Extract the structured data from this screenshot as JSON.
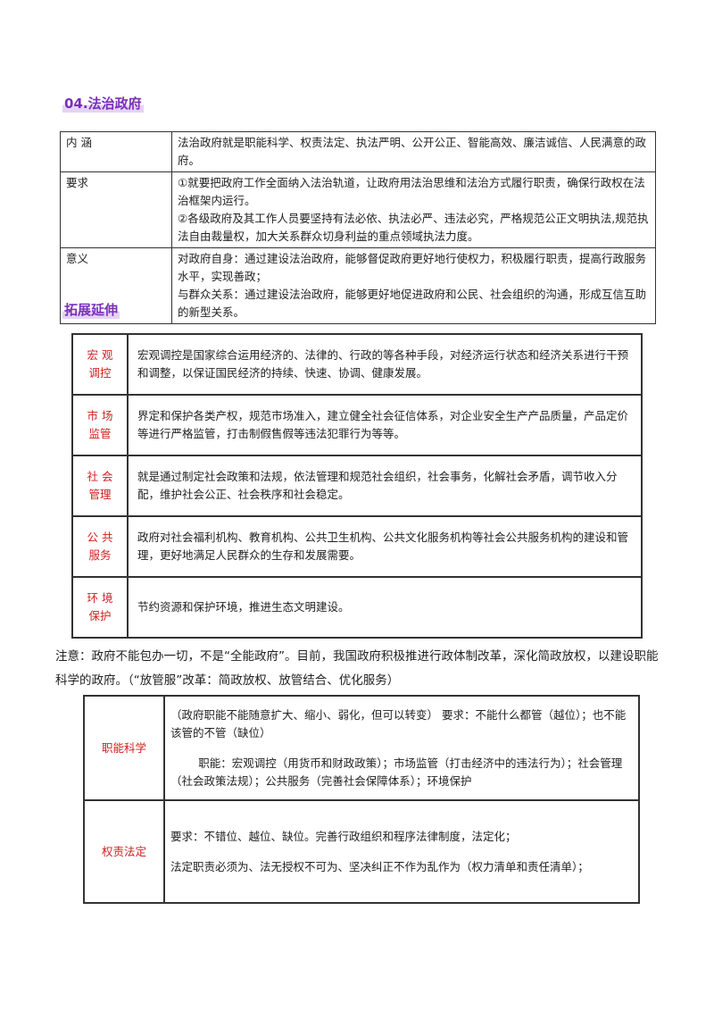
{
  "section1": {
    "title": "04.法治政府",
    "rows": [
      {
        "label": "内 涵",
        "paragraphs": [
          "法治政府就是职能科学、权责法定、执法严明、公开公正、智能高效、廉洁诚信、人民满意的政府。"
        ]
      },
      {
        "label": "要求",
        "paragraphs": [
          "①就要把政府工作全面纳入法治轨道，让政府用法治思维和法治方式履行职责，确保行政权在法治框架内运行。",
          "②各级政府及其工作人员要坚持有法必依、执法必严、违法必究，严格规范公正文明执法,规范执法自由裁量权，加大关系群众切身利益的重点领域执法力度。"
        ]
      },
      {
        "label": "意义",
        "paragraphs": [
          "对政府自身：通过建设法治政府，能够督促政府更好地行使权力，积极履行职责，提高行政服务水平，实现善政；",
          "与群众关系：通过建设法治政府，能够更好地促进政府和公民、社会组织的沟通，形成互信互助的新型关系。"
        ]
      }
    ]
  },
  "section2": {
    "title": "拓展延伸",
    "rows": [
      {
        "label": [
          "宏 观",
          "调控"
        ],
        "text": "宏观调控是国家综合运用经济的、法律的、行政的等各种手段，对经济运行状态和经济关系进行干预和调整，以保证国民经济的持续、快速、协调、健康发展。"
      },
      {
        "label": [
          "市 场",
          "监管"
        ],
        "text": "界定和保护各类产权，规范市场准入，建立健全社会征信体系，对企业安全生产产品质量，产品定价等进行严格监管，打击制假售假等违法犯罪行为等等。"
      },
      {
        "label": [
          "社 会",
          "管理"
        ],
        "text": "就是通过制定社会政策和法规，依法管理和规范社会组织，社会事务，化解社会矛盾，调节收入分配，维护社会公正、社会秩序和社会稳定。"
      },
      {
        "label": [
          "公 共",
          "服务"
        ],
        "text": "政府对社会福利机构、教育机构、公共卫生机构、公共文化服务机构等社会公共服务机构的建设和管理，更好地满足人民群众的生存和发展需要。"
      },
      {
        "label": [
          "环 境",
          "保护"
        ],
        "text": "节约资源和保护环境，推进生态文明建设。"
      }
    ],
    "note": "注意：政府不能包办一切，不是“全能政府”。目前，我国政府积极推进行政体制改革，深化简政放权，以建设职能科学的政府。（“放管服”改革：简政放权、放管结合、优化服务）"
  },
  "section3": {
    "rows": [
      {
        "label": "职能科学",
        "paragraphs": [
          "（政府职能不能随意扩大、缩小、弱化，但可以转变） 要求：不能什么都管（越位）；也不能该管的不管（缺位）",
          "职能：宏观调控（用货币和财政政策）；市场监管（打击经济中的违法行为）；社会管理（社会政策法规）；公共服务（完善社会保障体系）；环境保护"
        ]
      },
      {
        "label": "权责法定",
        "paragraphs": [
          "要求：不错位、越位、缺位。完善行政组织和程序法律制度，法定化；",
          "法定职责必须为、法无授权不可为、坚决纠正不作为乱作为（权力清单和责任清单）；"
        ]
      }
    ]
  }
}
